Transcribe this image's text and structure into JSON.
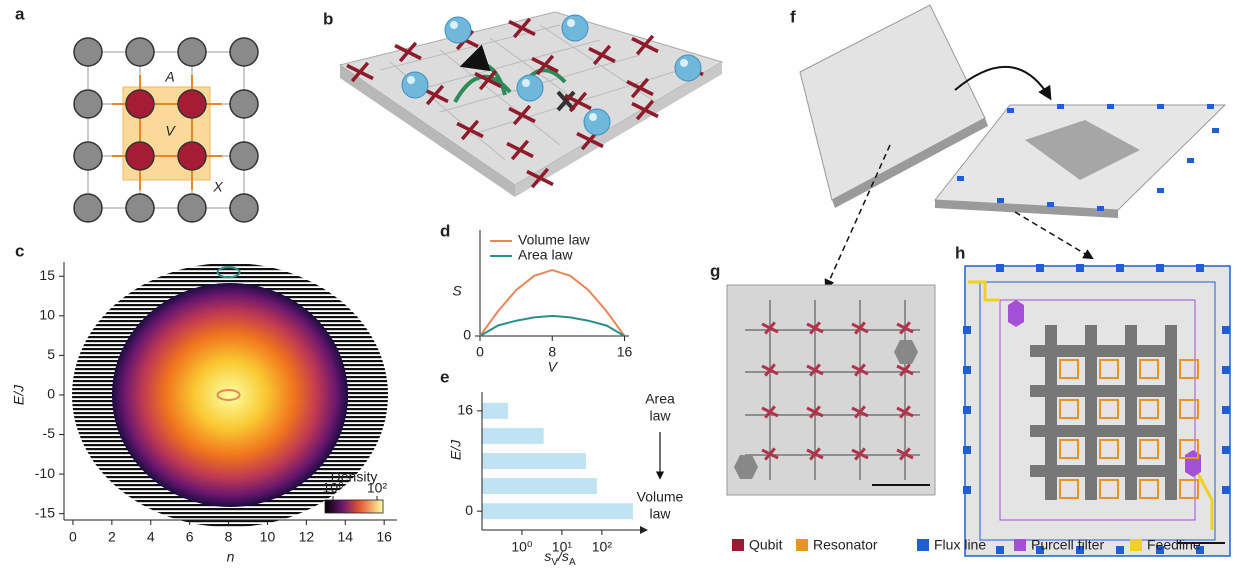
{
  "panel_labels": [
    "a",
    "b",
    "c",
    "d",
    "e",
    "f",
    "g",
    "h"
  ],
  "lattice_labels": [
    "A",
    "V",
    "X"
  ],
  "chart_data": [
    {
      "type": "heatmap",
      "xlabel": "n",
      "ylabel": "E/J",
      "xlim": [
        -0.46,
        16.66
      ],
      "ylim": [
        -15.8,
        16.8
      ],
      "xticks": [
        0,
        2,
        4,
        6,
        8,
        10,
        12,
        14,
        16
      ],
      "yticks": [
        -15,
        -10,
        -5,
        0,
        5,
        10,
        15
      ],
      "markers": [
        {
          "x": 8,
          "y": 15.5,
          "color": "#2a9088"
        },
        {
          "x": 8,
          "y": 0,
          "color": "#e8875a"
        }
      ],
      "colorbar": {
        "title": "Density",
        "ticks": [
          {
            "value": 1,
            "label": "10⁰"
          },
          {
            "value": 100,
            "label": "10²"
          }
        ]
      }
    },
    {
      "type": "line",
      "xlabel": "V",
      "ylabel": "S",
      "x": [
        0,
        2,
        4,
        6,
        8,
        10,
        12,
        14,
        16
      ],
      "series": [
        {
          "name": "Volume law",
          "color": "#e8875a",
          "values": [
            0,
            2.6,
            4.8,
            6.3,
            6.9,
            6.3,
            4.8,
            2.6,
            0
          ]
        },
        {
          "name": "Area law",
          "color": "#2a9088",
          "values": [
            0,
            1.1,
            1.6,
            1.95,
            2.1,
            1.95,
            1.6,
            1.1,
            0
          ]
        }
      ],
      "xlim": [
        0,
        16.5
      ],
      "ylim": [
        0,
        9
      ],
      "xticks": [
        0,
        8,
        16
      ],
      "yticks": [
        0
      ]
    },
    {
      "type": "bar",
      "orientation": "horizontal",
      "log_x": true,
      "color": "#bfe3f2",
      "ylabel": "E/J",
      "xlabel": [
        "s",
        "V",
        "/s",
        "A"
      ],
      "y": [
        16,
        12,
        8,
        4,
        0
      ],
      "values": [
        0.45,
        3.5,
        40,
        75,
        600
      ],
      "xlim": [
        0.1,
        900
      ],
      "ylim": [
        -3,
        19
      ],
      "xticks": [
        {
          "value": 1,
          "label": "10⁰"
        },
        {
          "value": 10,
          "label": "10¹"
        },
        {
          "value": 100,
          "label": "10²"
        }
      ],
      "yticks": [
        0,
        16
      ],
      "annotations": [
        [
          "Area",
          "law"
        ],
        [
          "Volume",
          "law"
        ]
      ]
    }
  ],
  "legend": [
    {
      "name": "Qubit",
      "color": "#9b1b30"
    },
    {
      "name": "Resonator",
      "color": "#e8951f"
    },
    {
      "name": "Flux line",
      "color": "#1f5fd6"
    },
    {
      "name": "Purcell filter",
      "color": "#a34fd6"
    },
    {
      "name": "Feedline",
      "color": "#f0d020"
    }
  ]
}
